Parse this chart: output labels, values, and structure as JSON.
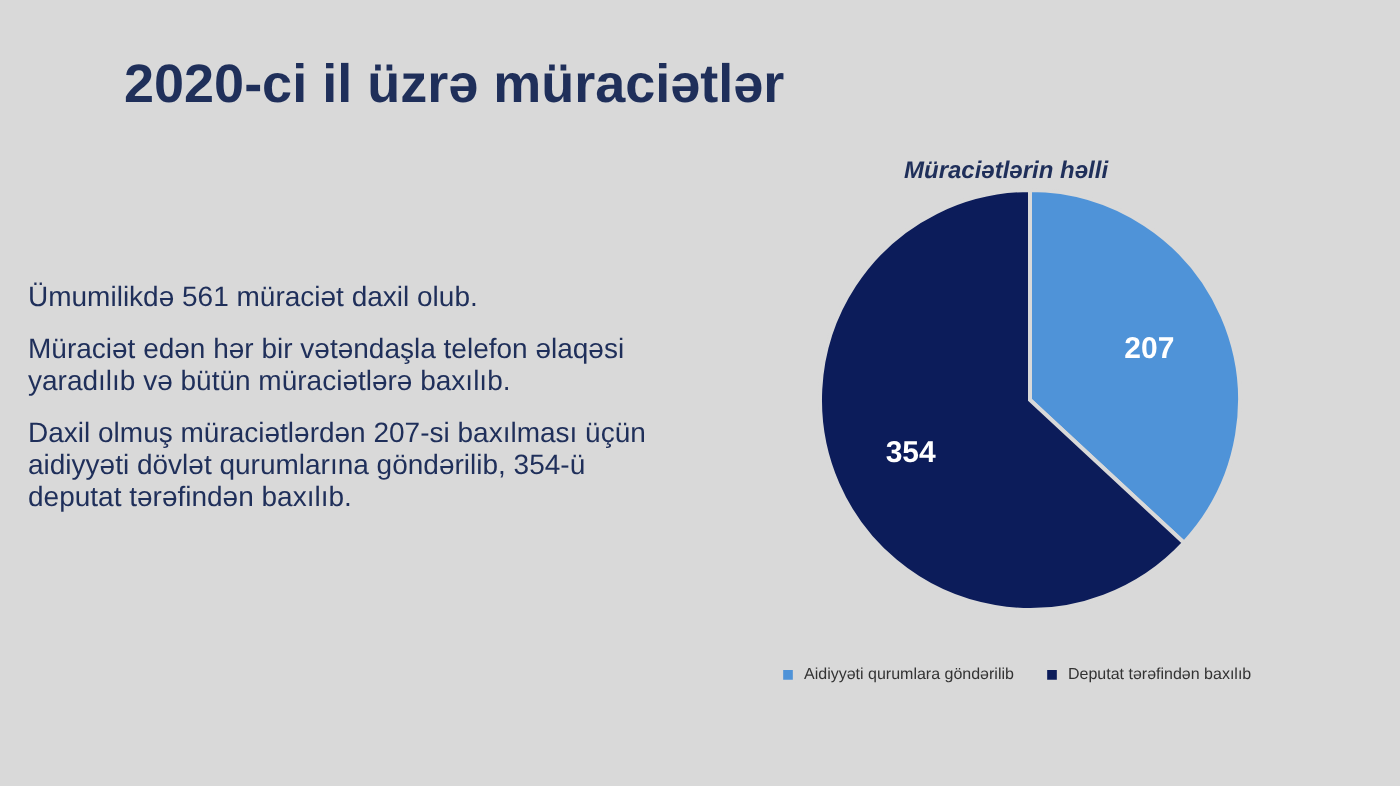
{
  "chart_data": {
    "type": "pie",
    "title": "Müraciətlərin həlli",
    "categories": [
      "Aidiyyəti qurumlara göndərilib",
      "Deputat tərəfindən baxılıb"
    ],
    "values": [
      207,
      354
    ],
    "colors": [
      "#4f93d8",
      "#0c1c5a"
    ],
    "data_labels": true,
    "legend": "bottom",
    "annotations": [
      "2020-ci il üzrə müraciətlər",
      "Ümumilikdə 561 müraciət daxil olub.",
      "Müraciət edən hər bir vətəndaşla telefon əlaqəsi yaradılıb və bütün müraciətlərə baxılıb.",
      "Daxil olmuş müraciətlərdən 207-si baxılması üçün aidiyyəti dövlət qurumlarına göndərilib, 354-ü deputat tərəfindən baxılıb."
    ]
  }
}
